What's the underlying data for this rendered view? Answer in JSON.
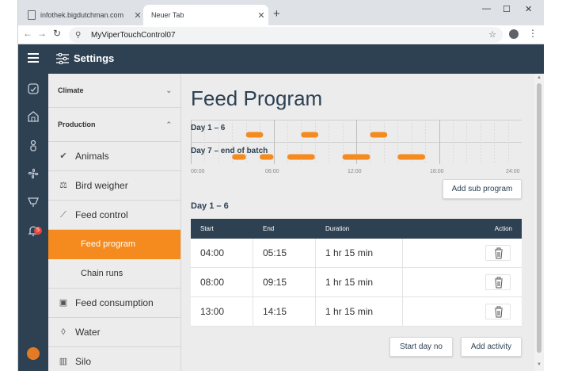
{
  "browser": {
    "tabs": [
      {
        "title": "infothek.bigdutchman.com"
      },
      {
        "title": "Neuer Tab"
      }
    ],
    "address": "MyViperTouchControl07"
  },
  "app": {
    "header_title": "Settings",
    "notification_count": "5",
    "menu": {
      "climate": "Climate",
      "production": "Production",
      "animals": "Animals",
      "bird_weigher": "Bird weigher",
      "feed_control": "Feed control",
      "feed_program": "Feed program",
      "chain_runs": "Chain runs",
      "feed_consumption": "Feed consumption",
      "water": "Water",
      "silo": "Silo"
    },
    "page_title": "Feed Program",
    "timeline": {
      "rows": [
        {
          "label": "Day 1 – 6",
          "blocks": [
            [
              "04:00",
              "05:15"
            ],
            [
              "08:00",
              "09:15"
            ],
            [
              "13:00",
              "14:15"
            ]
          ]
        },
        {
          "label": "Day 7 – end of batch",
          "blocks": [
            [
              "03:00",
              "04:00"
            ],
            [
              "05:00",
              "06:00"
            ],
            [
              "07:00",
              "09:00"
            ],
            [
              "11:00",
              "13:00"
            ],
            [
              "15:00",
              "17:00"
            ]
          ]
        }
      ],
      "ticks": [
        "00:00",
        "06:00",
        "12:00",
        "18:00",
        "24:00"
      ],
      "bar_color": "#f58a1f"
    },
    "add_sub_program": "Add sub program",
    "section_title": "Day 1 – 6",
    "table": {
      "headers": {
        "start": "Start",
        "end": "End",
        "duration": "Duration",
        "action": "Action"
      },
      "rows": [
        {
          "start": "04:00",
          "end": "05:15",
          "duration": "1 hr 15 min"
        },
        {
          "start": "08:00",
          "end": "09:15",
          "duration": "1 hr 15 min"
        },
        {
          "start": "13:00",
          "end": "14:15",
          "duration": "1 hr 15 min"
        }
      ]
    },
    "start_day_no": "Start day no",
    "add_activity": "Add activity",
    "accent_color": "#f58a1f",
    "header_color": "#2e4153"
  }
}
